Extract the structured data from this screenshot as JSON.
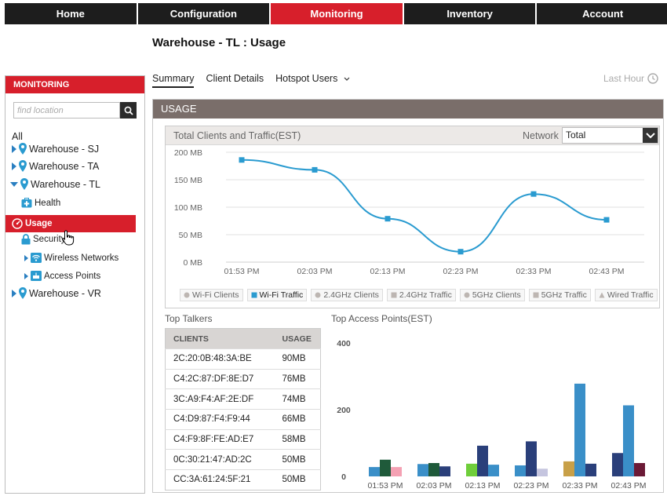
{
  "nav": {
    "tabs": [
      {
        "label": "Home",
        "active": false
      },
      {
        "label": "Configuration",
        "active": false
      },
      {
        "label": "Monitoring",
        "active": true
      },
      {
        "label": "Inventory",
        "active": false
      },
      {
        "label": "Account",
        "active": false
      }
    ]
  },
  "page_title": "Warehouse - TL : Usage",
  "sidebar": {
    "header": "MONITORING",
    "search_placeholder": "find location",
    "all_label": "All",
    "items": [
      {
        "label": "Warehouse - SJ"
      },
      {
        "label": "Warehouse - TA"
      },
      {
        "label": "Warehouse - TL"
      },
      {
        "label": "Health"
      },
      {
        "label": "Usage"
      },
      {
        "label": "Security"
      },
      {
        "label": "Wireless Networks"
      },
      {
        "label": "Access Points"
      },
      {
        "label": "Warehouse - VR"
      }
    ]
  },
  "subtabs": [
    {
      "label": "Summary",
      "active": true
    },
    {
      "label": "Client Details",
      "active": false
    },
    {
      "label": "Hotspot Users",
      "active": false
    }
  ],
  "last_hour": "Last Hour",
  "usage": {
    "header": "USAGE",
    "chart_title": "Total Clients and Traffic(EST)",
    "network_label": "Network",
    "network_value": "Total",
    "legend": [
      {
        "label": "Wi-Fi Clients",
        "active": false,
        "symbol": "circle"
      },
      {
        "label": "Wi-Fi Traffic",
        "active": true,
        "symbol": "square"
      },
      {
        "label": "2.4GHz Clients",
        "active": false,
        "symbol": "circle"
      },
      {
        "label": "2.4GHz Traffic",
        "active": false,
        "symbol": "square"
      },
      {
        "label": "5GHz Clients",
        "active": false,
        "symbol": "circle"
      },
      {
        "label": "5GHz Traffic",
        "active": false,
        "symbol": "square"
      },
      {
        "label": "Wired Traffic",
        "active": false,
        "symbol": "triangle"
      }
    ]
  },
  "top_talkers": {
    "title": "Top Talkers",
    "columns": [
      "CLIENTS",
      "USAGE"
    ],
    "rows": [
      [
        "2C:20:0B:48:3A:BE",
        "90MB"
      ],
      [
        "C4:2C:87:DF:8E:D7",
        "76MB"
      ],
      [
        "3C:A9:F4:AF:2E:DF",
        "74MB"
      ],
      [
        "C4:D9:87:F4:F9:44",
        "66MB"
      ],
      [
        "C4:F9:8F:FE:AD:E7",
        "58MB"
      ],
      [
        "0C:30:21:47:AD:2C",
        "50MB"
      ],
      [
        "CC:3A:61:24:5F:21",
        "50MB"
      ]
    ]
  },
  "top_aps": {
    "title": "Top Access Points(EST)"
  },
  "colors": {
    "accent": "#d71f2b",
    "line": "#2a9bd0",
    "nav": "#1d1d1d",
    "panel_header": "#7a6e6a"
  },
  "chart_data": [
    {
      "type": "line",
      "title": "Total Clients and Traffic(EST)",
      "categories": [
        "01:53 PM",
        "02:03 PM",
        "02:13 PM",
        "02:23 PM",
        "02:33 PM",
        "02:43 PM"
      ],
      "y_ticks": [
        "200 MB",
        "150 MB",
        "100 MB",
        "50 MB",
        "0 MB"
      ],
      "series": [
        {
          "name": "Wi-Fi Traffic",
          "values": [
            186,
            168,
            79,
            19,
            124,
            77
          ]
        }
      ],
      "ylim": [
        0,
        200
      ]
    },
    {
      "type": "bar",
      "title": "Top Access Points(EST)",
      "categories": [
        "01:53 PM",
        "02:03 PM",
        "02:13 PM",
        "02:23 PM",
        "02:33 PM",
        "02:43 PM"
      ],
      "y_ticks": [
        "400",
        "200",
        "0"
      ],
      "ylim": [
        0,
        400
      ],
      "groups": [
        [
          {
            "value": 28,
            "color": "#3a8fc8"
          },
          {
            "value": 50,
            "color": "#1f5a3a"
          },
          {
            "value": 28,
            "color": "#f4a1b3"
          }
        ],
        [
          {
            "value": 37,
            "color": "#3a8fc8"
          },
          {
            "value": 40,
            "color": "#1f5a3a"
          },
          {
            "value": 30,
            "color": "#2a3f7a"
          }
        ],
        [
          {
            "value": 38,
            "color": "#6fce3a"
          },
          {
            "value": 92,
            "color": "#2a3f7a"
          },
          {
            "value": 35,
            "color": "#3a8fc8"
          }
        ],
        [
          {
            "value": 33,
            "color": "#3a8fc8"
          },
          {
            "value": 105,
            "color": "#2a3f7a"
          },
          {
            "value": 23,
            "color": "#c5c5df"
          }
        ],
        [
          {
            "value": 45,
            "color": "#c8a048"
          },
          {
            "value": 278,
            "color": "#3a8fc8"
          },
          {
            "value": 38,
            "color": "#2a3f7a"
          }
        ],
        [
          {
            "value": 70,
            "color": "#2a3f7a"
          },
          {
            "value": 213,
            "color": "#3a8fc8"
          },
          {
            "value": 40,
            "color": "#6b1a36"
          }
        ]
      ]
    }
  ]
}
